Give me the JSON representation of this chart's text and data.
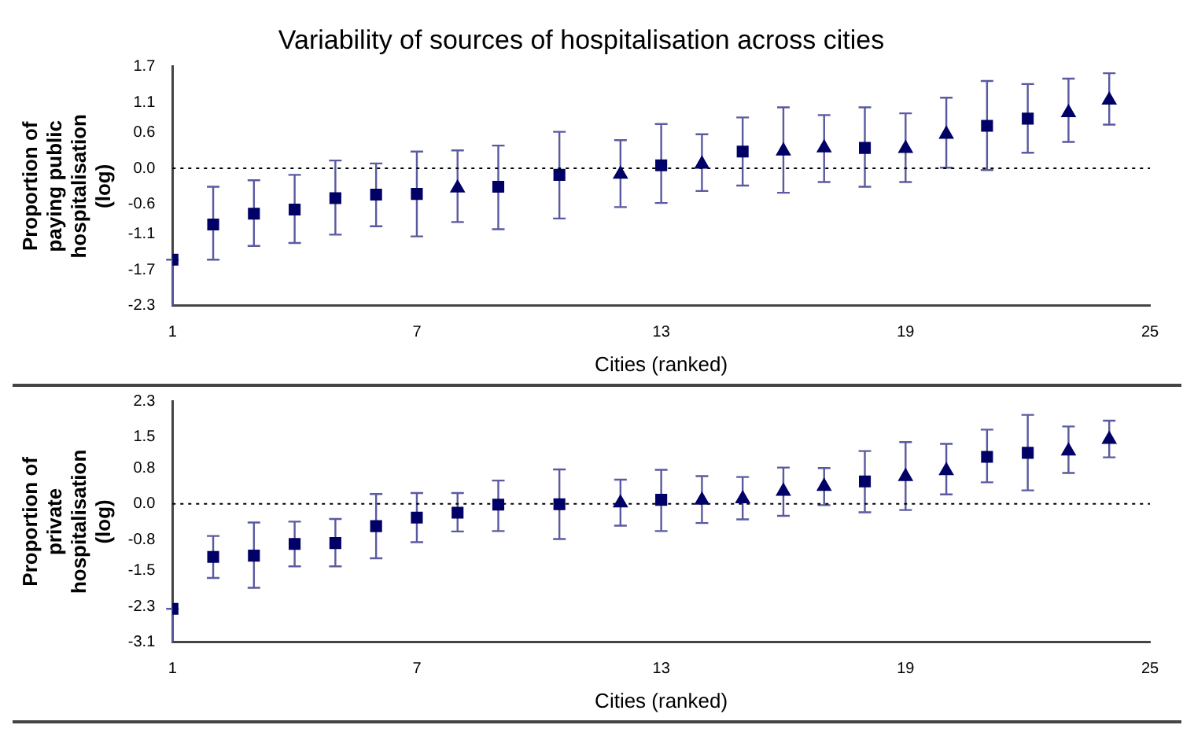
{
  "chart_data": [
    {
      "type": "scatter",
      "title": "Variability of sources of hospitalisation across cities",
      "xlabel": "Cities (ranked)",
      "ylabel": "Proportion of paying public hospitalisation (log)",
      "xlim": [
        1,
        25
      ],
      "xticks": [
        1,
        7,
        13,
        19,
        25
      ],
      "ylim": [
        -2.3,
        1.7
      ],
      "yticks": [
        {
          "value": -2.3,
          "label": "-2.3"
        },
        {
          "value": -1.7,
          "label": "-1.7"
        },
        {
          "value": -1.1,
          "label": "-1.1"
        },
        {
          "value": -0.6,
          "label": "-0.6"
        },
        {
          "value": 0,
          "label": "0.0"
        },
        {
          "value": 0.6,
          "label": "0.6"
        },
        {
          "value": 1.1,
          "label": "1.1"
        },
        {
          "value": 1.7,
          "label": "1.7"
        }
      ],
      "ref_lines": [
        {
          "axis": "y",
          "value": 0,
          "line_style": "dotted",
          "color": "#000000"
        }
      ],
      "series": [
        {
          "color": "#000066",
          "marker": "square",
          "x": [
            1,
            3,
            4,
            7,
            15
          ],
          "values": [
            -1.53,
            -0.76,
            -0.69,
            -0.43,
            0.28
          ],
          "errors": [
            [
              -2.3,
              -1.53
            ],
            [
              -1.3,
              -0.2
            ],
            [
              -1.25,
              -0.11
            ],
            [
              -1.14,
              0.28
            ],
            [
              -0.29,
              0.85
            ]
          ]
        },
        {
          "color": "#000066",
          "marker": "square",
          "x": [
            2,
            5,
            6,
            9,
            10.5,
            13,
            18,
            21,
            22
          ],
          "values": [
            -0.94,
            -0.5,
            -0.44,
            -0.31,
            -0.11,
            0.05,
            0.34,
            0.71,
            0.83
          ],
          "errors": [
            [
              -1.53,
              -0.31
            ],
            [
              -1.11,
              0.13
            ],
            [
              -0.97,
              0.08
            ],
            [
              -1.02,
              0.38
            ],
            [
              -0.84,
              0.61
            ],
            [
              -0.58,
              0.74
            ],
            [
              -0.31,
              1.02
            ],
            [
              -0.03,
              1.46
            ],
            [
              0.26,
              1.41
            ]
          ]
        },
        {
          "color": "#000066",
          "marker": "triangle",
          "x": [
            8,
            12,
            14,
            16,
            17,
            19,
            20,
            23,
            24
          ],
          "values": [
            -0.33,
            -0.1,
            0.07,
            0.29,
            0.34,
            0.33,
            0.57,
            0.93,
            1.14
          ],
          "errors": [
            [
              -0.9,
              0.3
            ],
            [
              -0.65,
              0.47
            ],
            [
              -0.38,
              0.57
            ],
            [
              -0.41,
              1.02
            ],
            [
              -0.23,
              0.89
            ],
            [
              -0.23,
              0.92
            ],
            [
              0.01,
              1.18
            ],
            [
              0.44,
              1.5
            ],
            [
              0.73,
              1.59
            ]
          ]
        }
      ]
    },
    {
      "type": "scatter",
      "xlabel": "Cities (ranked)",
      "ylabel": "Proportion of private hospitalisation (log)",
      "xlim": [
        1,
        25
      ],
      "xticks": [
        1,
        7,
        13,
        19,
        25
      ],
      "ylim": [
        -3.1,
        2.3
      ],
      "yticks": [
        {
          "value": -3.1,
          "label": "-3.1"
        },
        {
          "value": -2.3,
          "label": "-2.3"
        },
        {
          "value": -1.5,
          "label": "-1.5"
        },
        {
          "value": -0.8,
          "label": "-0.8"
        },
        {
          "value": 0,
          "label": "0.0"
        },
        {
          "value": 0.8,
          "label": "0.8"
        },
        {
          "value": 1.5,
          "label": "1.5"
        },
        {
          "value": 2.3,
          "label": "2.3"
        }
      ],
      "ref_lines": [
        {
          "axis": "y",
          "value": 0,
          "line_style": "dotted",
          "color": "#000000"
        }
      ],
      "series": [
        {
          "color": "#000066",
          "marker": "square",
          "x": [
            1,
            2,
            3,
            4,
            9
          ],
          "values": [
            -2.35,
            -1.19,
            -1.16,
            -0.9,
            -0.02
          ],
          "errors": [
            [
              -3.1,
              -2.35
            ],
            [
              -1.66,
              -0.72
            ],
            [
              -1.88,
              -0.42
            ],
            [
              -1.4,
              -0.4
            ],
            [
              -0.61,
              0.52
            ]
          ]
        },
        {
          "color": "#000066",
          "marker": "square",
          "x": [
            5,
            6,
            7,
            8,
            10.5,
            13,
            18,
            21,
            22
          ],
          "values": [
            -0.88,
            -0.5,
            -0.31,
            -0.2,
            -0.01,
            0.09,
            0.5,
            1.05,
            1.14
          ],
          "errors": [
            [
              -1.4,
              -0.34
            ],
            [
              -1.22,
              0.22
            ],
            [
              -0.86,
              0.24
            ],
            [
              -0.62,
              0.24
            ],
            [
              -0.79,
              0.77
            ],
            [
              -0.61,
              0.76
            ],
            [
              -0.19,
              1.18
            ],
            [
              0.48,
              1.66
            ],
            [
              0.3,
              1.99
            ]
          ]
        },
        {
          "color": "#000066",
          "marker": "triangle",
          "x": [
            12,
            14,
            15,
            16,
            17,
            19,
            20,
            23,
            24
          ],
          "values": [
            0.02,
            0.08,
            0.11,
            0.28,
            0.39,
            0.61,
            0.74,
            1.18,
            1.44
          ],
          "errors": [
            [
              -0.49,
              0.54
            ],
            [
              -0.43,
              0.62
            ],
            [
              -0.35,
              0.6
            ],
            [
              -0.27,
              0.81
            ],
            [
              -0.03,
              0.8
            ],
            [
              -0.14,
              1.38
            ],
            [
              0.21,
              1.34
            ],
            [
              0.69,
              1.73
            ],
            [
              1.04,
              1.86
            ]
          ]
        }
      ]
    }
  ]
}
